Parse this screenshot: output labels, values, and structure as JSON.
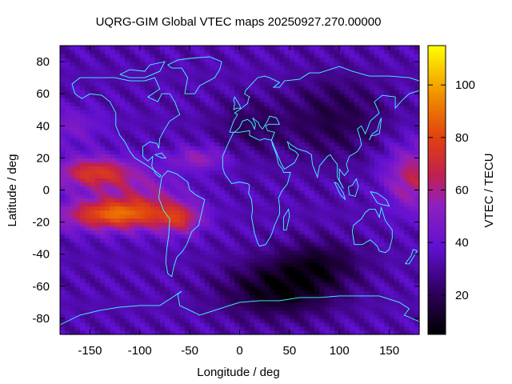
{
  "chart_data": {
    "type": "heatmap",
    "title": "UQRG-GIM Global VTEC maps 20250927.270.00000",
    "xlabel": "Longitude / deg",
    "ylabel": "Latitude / deg",
    "colorbar_label": "VTEC / TECU",
    "xlim": [
      -180,
      180
    ],
    "ylim": [
      -90,
      90
    ],
    "zlim": [
      5,
      115
    ],
    "x_ticks": [
      -150,
      -100,
      -50,
      0,
      50,
      100,
      150
    ],
    "y_ticks": [
      -80,
      -60,
      -40,
      -20,
      0,
      20,
      40,
      60,
      80
    ],
    "colorbar_ticks": [
      20,
      40,
      60,
      80,
      100
    ],
    "x_tick_labels": [
      "-150",
      "-100",
      "-50",
      "0",
      "50",
      "100",
      "150"
    ],
    "y_tick_labels": [
      "-80",
      "-60",
      "-40",
      "-20",
      "0",
      "20",
      "40",
      "60",
      "80"
    ],
    "colorbar_tick_labels": [
      "20",
      "40",
      "60",
      "80",
      "100"
    ],
    "colormap": "gnuplot-hot (black-purple-red-orange-yellow)",
    "grid": false,
    "legend_position": "colorbar right",
    "grid_lon_step": 5,
    "grid_lat_step": 2.5,
    "field_components": [
      {
        "name": "background",
        "value": 33
      },
      {
        "name": "equatorial anomaly north crest (Pacific)",
        "lon": -145,
        "lat": 10,
        "peak": 75
      },
      {
        "name": "equatorial anomaly south crest (Pacific)",
        "lon": -125,
        "lat": -15,
        "peak": 85
      },
      {
        "name": "anomaly crest over South America",
        "lon": -60,
        "lat": -18,
        "peak": 60
      },
      {
        "name": "enhancement west Pacific",
        "lon": 170,
        "lat": 5,
        "peak": 65
      },
      {
        "name": "depletion over southern Indian Ocean / Antarctica",
        "lon": 40,
        "lat": -62,
        "trough": 8
      },
      {
        "name": "depletion over Asia",
        "lon": 90,
        "lat": 45,
        "trough": 15
      }
    ]
  },
  "colors": {
    "coastline": "#40ffff",
    "frame": "#000000",
    "background": "#ffffff"
  }
}
